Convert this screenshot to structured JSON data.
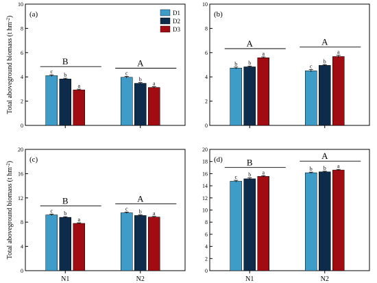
{
  "figure": {
    "ylabel": "Total aboveground biomass (t hm",
    "ylabel_sup": "-2",
    "ylabel_end": ")"
  },
  "legend": {
    "items": [
      {
        "label": "D1",
        "color": "#3d9cc8"
      },
      {
        "label": "D2",
        "color": "#0d2c4c"
      },
      {
        "label": "D3",
        "color": "#a10b12"
      }
    ]
  },
  "chart_data": [
    {
      "type": "bar",
      "panel": "(a)",
      "categories": [
        "N1",
        "N2"
      ],
      "series": [
        {
          "name": "D1",
          "values": [
            4.1,
            3.97
          ],
          "errors": [
            0.07,
            0.07
          ]
        },
        {
          "name": "D2",
          "values": [
            3.83,
            3.47
          ],
          "errors": [
            0.06,
            0.06
          ]
        },
        {
          "name": "D3",
          "values": [
            2.93,
            3.13
          ],
          "errors": [
            0.06,
            0.06
          ]
        }
      ],
      "letters": [
        [
          "c",
          "b",
          "a"
        ],
        [
          "c",
          "b",
          "a"
        ]
      ],
      "group_letters": [
        "B",
        "A"
      ],
      "ylim": [
        0,
        10
      ],
      "yticks": [
        0,
        2,
        4,
        6,
        8,
        10
      ],
      "show_xticklabels": false,
      "show_ylabel": true,
      "legend": true
    },
    {
      "type": "bar",
      "panel": "(b)",
      "categories": [
        "N1",
        "N2"
      ],
      "series": [
        {
          "name": "D1",
          "values": [
            4.73,
            4.5
          ],
          "errors": [
            0.08,
            0.1
          ]
        },
        {
          "name": "D2",
          "values": [
            4.83,
            4.95
          ],
          "errors": [
            0.06,
            0.06
          ]
        },
        {
          "name": "D3",
          "values": [
            5.58,
            5.68
          ],
          "errors": [
            0.07,
            0.1
          ]
        }
      ],
      "letters": [
        [
          "b",
          "b",
          "a"
        ],
        [
          "c",
          "b",
          "a"
        ]
      ],
      "group_letters": [
        "A",
        "A"
      ],
      "ylim": [
        0,
        10
      ],
      "yticks": [
        0,
        2,
        4,
        6,
        8,
        10
      ],
      "show_xticklabels": false,
      "show_ylabel": false,
      "legend": false
    },
    {
      "type": "bar",
      "panel": "(c)",
      "categories": [
        "N1",
        "N2"
      ],
      "series": [
        {
          "name": "D1",
          "values": [
            9.2,
            9.55
          ],
          "errors": [
            0.12,
            0.1
          ]
        },
        {
          "name": "D2",
          "values": [
            8.8,
            9.1
          ],
          "errors": [
            0.1,
            0.1
          ]
        },
        {
          "name": "D3",
          "values": [
            7.8,
            8.85
          ],
          "errors": [
            0.1,
            0.1
          ]
        }
      ],
      "letters": [
        [
          "c",
          "b",
          "a"
        ],
        [
          "c",
          "b",
          "a"
        ]
      ],
      "group_letters": [
        "B",
        "A"
      ],
      "ylim": [
        0,
        20
      ],
      "yticks": [
        0,
        4,
        8,
        12,
        16,
        20
      ],
      "show_xticklabels": true,
      "show_ylabel": true,
      "legend": false
    },
    {
      "type": "bar",
      "panel": "(d)",
      "categories": [
        "N1",
        "N2"
      ],
      "series": [
        {
          "name": "D1",
          "values": [
            14.75,
            16.15
          ],
          "errors": [
            0.15,
            0.1
          ]
        },
        {
          "name": "D2",
          "values": [
            15.15,
            16.3
          ],
          "errors": [
            0.15,
            0.1
          ]
        },
        {
          "name": "D3",
          "values": [
            15.55,
            16.6
          ],
          "errors": [
            0.12,
            0.1
          ]
        }
      ],
      "letters": [
        [
          "c",
          "b",
          "a"
        ],
        [
          "b",
          "b",
          "a"
        ]
      ],
      "group_letters": [
        "B",
        "A"
      ],
      "ylim": [
        0,
        20
      ],
      "yticks": [
        0,
        2,
        4,
        6,
        8,
        10,
        12,
        14,
        16,
        18,
        20
      ],
      "show_xticklabels": true,
      "show_ylabel": false,
      "legend": false
    }
  ]
}
